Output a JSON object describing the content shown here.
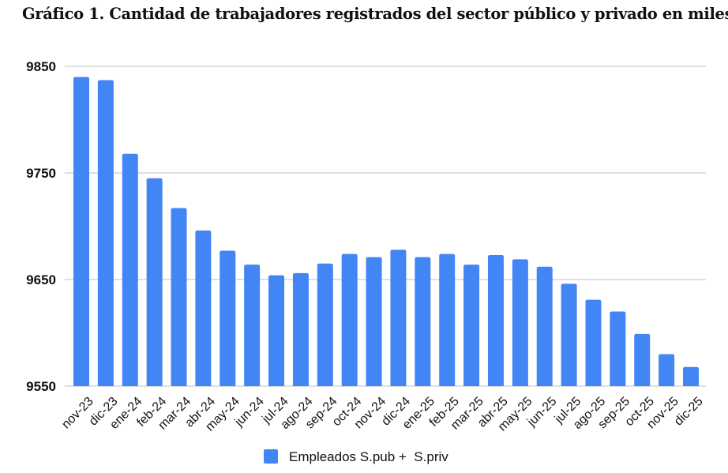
{
  "chart_data": {
    "type": "bar",
    "title": "Gráfico 1. Cantidad de trabajadores registrados del sector público y privado en miles",
    "xlabel": "",
    "ylabel": "",
    "ylim": [
      9550,
      9850
    ],
    "yticks": [
      9550,
      9650,
      9750,
      9850
    ],
    "grid": true,
    "legend_position": "bottom",
    "categories": [
      "nov-23",
      "dic-23",
      "ene-24",
      "feb-24",
      "mar-24",
      "abr-24",
      "may-24",
      "jun-24",
      "jul-24",
      "ago-24",
      "sep-24",
      "oct-24",
      "nov-24",
      "dic-24",
      "ene-25",
      "feb-25",
      "mar-25",
      "abr-25",
      "may-25",
      "jun-25",
      "jul-25",
      "ago-25",
      "sep-25",
      "oct-25",
      "nov-25",
      "dic-25"
    ],
    "series": [
      {
        "name": "Empleados S.pub +  S.priv",
        "color": "#4285f4",
        "values": [
          9840,
          9837,
          9768,
          9745,
          9717,
          9696,
          9677,
          9664,
          9654,
          9656,
          9665,
          9674,
          9671,
          9678,
          9671,
          9674,
          9664,
          9673,
          9669,
          9662,
          9646,
          9631,
          9620,
          9599,
          9580,
          9568
        ]
      }
    ]
  },
  "colors": {
    "bar": "#4285f4",
    "grid": "#cccccc"
  }
}
